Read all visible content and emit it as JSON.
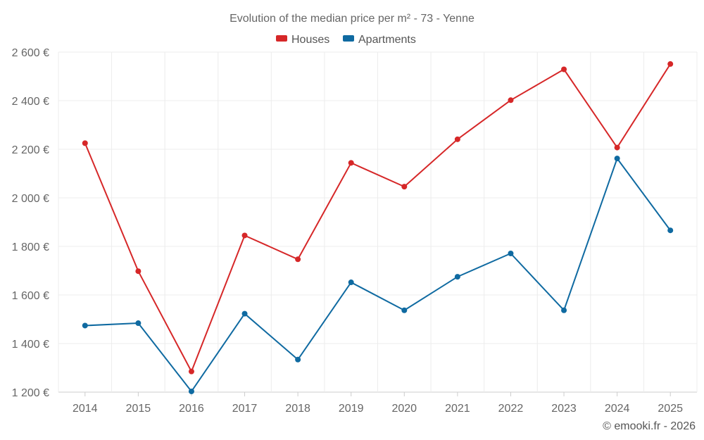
{
  "chart_data": {
    "type": "line",
    "title": "Evolution of the median price per m² - 73 - Yenne",
    "categories": [
      "2014",
      "2015",
      "2016",
      "2017",
      "2018",
      "2019",
      "2020",
      "2021",
      "2022",
      "2023",
      "2024",
      "2025"
    ],
    "series": [
      {
        "name": "Houses",
        "color": "#d62728",
        "values": [
          2225,
          1698,
          1285,
          1845,
          1747,
          2144,
          2046,
          2241,
          2402,
          2529,
          2207,
          2551
        ]
      },
      {
        "name": "Apartments",
        "color": "#0f6aa1",
        "values": [
          1474,
          1484,
          1203,
          1523,
          1334,
          1652,
          1537,
          1675,
          1771,
          1537,
          2162,
          1866
        ]
      }
    ],
    "ylim": [
      1200,
      2600
    ],
    "yticks": [
      1200,
      1400,
      1600,
      1800,
      2000,
      2200,
      2400,
      2600
    ],
    "ytick_labels": [
      "1 200 €",
      "1 400 €",
      "1 600 €",
      "1 800 €",
      "2 000 €",
      "2 200 €",
      "2 400 €",
      "2 600 €"
    ],
    "xlabel": "",
    "ylabel": "",
    "grid": true,
    "legend_position": "top-center"
  },
  "credit": "© emooki.fr - 2026"
}
